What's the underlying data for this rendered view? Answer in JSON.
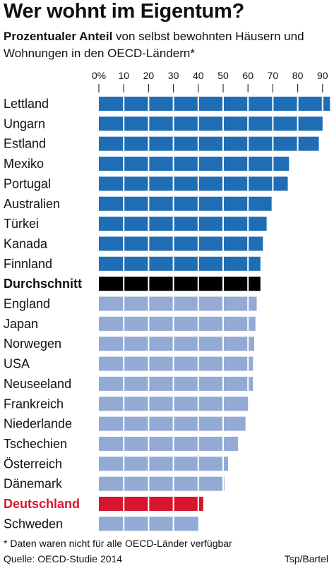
{
  "header": {
    "title": "Wer wohnt im Eigentum?",
    "subtitle_bold": "Prozentualer Anteil",
    "subtitle_rest": " von selbst bewohnten Häusern und Wohnungen in den OECD-Ländern*"
  },
  "footer": {
    "footnote": "* Daten waren nicht für alle OECD-Länder verfügbar",
    "source": "Quelle: OECD-Studie 2014",
    "credit": "Tsp/Bartel"
  },
  "colors": {
    "highlight_bar": "#1f6db5",
    "average_bar": "#000000",
    "other_bar": "#93aad5",
    "germany_bar": "#d7152e",
    "germany_label": "#d7152e",
    "segment_line": "#ffffff"
  },
  "chart_data": {
    "type": "bar",
    "orientation": "horizontal",
    "tick_labels": [
      "0%",
      "10",
      "20",
      "30",
      "40",
      "50",
      "60",
      "70",
      "80",
      "90"
    ],
    "xlim": [
      0,
      92
    ],
    "grid": false,
    "categories": [
      "Lettland",
      "Ungarn",
      "Estland",
      "Mexiko",
      "Portugal",
      "Australien",
      "Türkei",
      "Kanada",
      "Finnland",
      "Durchschnitt",
      "England",
      "Japan",
      "Norwegen",
      "USA",
      "Neuseeland",
      "Frankreich",
      "Niederlande",
      "Tschechien",
      "Österreich",
      "Dänemark",
      "Deutschland",
      "Schweden"
    ],
    "values": [
      93,
      90,
      88.5,
      76.5,
      76,
      69.5,
      67.5,
      66,
      65,
      65,
      63.5,
      63,
      62.5,
      62,
      62,
      60,
      59,
      56,
      52,
      50.5,
      42,
      40
    ],
    "groups": [
      "high",
      "high",
      "high",
      "high",
      "high",
      "high",
      "high",
      "high",
      "high",
      "average",
      "other",
      "other",
      "other",
      "other",
      "other",
      "other",
      "other",
      "other",
      "other",
      "other",
      "germany",
      "other"
    ]
  }
}
